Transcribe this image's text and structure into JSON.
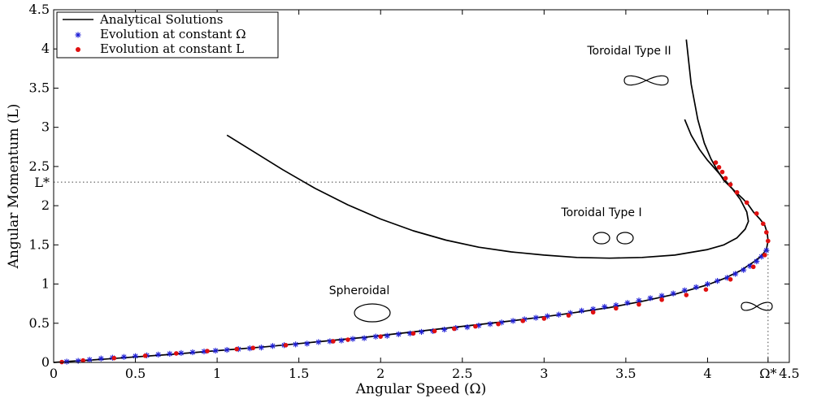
{
  "chart_data": {
    "type": "line",
    "xlabel": "Angular Speed (Ω)",
    "ylabel": "Angular Momentum (L)",
    "xlim": [
      0,
      4.5
    ],
    "ylim": [
      0,
      4.5
    ],
    "x_ticks": [
      "0",
      "0.5",
      "1",
      "1.5",
      "2",
      "2.5",
      "3",
      "3.5",
      "4",
      "Ω*",
      "4.5"
    ],
    "x_tick_values": [
      0,
      0.5,
      1,
      1.5,
      2,
      2.5,
      3,
      3.5,
      4,
      4.37,
      4.5
    ],
    "y_ticks": [
      "0",
      "0.5",
      "1",
      "1.5",
      "2",
      "2.5",
      "3",
      "3.5",
      "4",
      "4.5"
    ],
    "y_tick_values": [
      0,
      0.5,
      1,
      1.5,
      2,
      2.5,
      3,
      3.5,
      4,
      4.5
    ],
    "grid": false,
    "legend_position": "top-left",
    "legend": [
      {
        "label": "Analytical Solutions",
        "marker": "line",
        "color": "#000000"
      },
      {
        "label": "Evolution at constant Ω",
        "marker": "star",
        "color": "#1f1fd6"
      },
      {
        "label": "Evolution at constant L",
        "marker": "dot",
        "color": "#e01010"
      }
    ],
    "reference_lines": {
      "L_star": {
        "label": "L*",
        "value": 2.3
      },
      "Omega_star": {
        "label": "Ω*",
        "value": 4.37
      }
    },
    "annotations": {
      "spheroidal": {
        "text": "Spheroidal",
        "x": 1.9,
        "y": 0.88
      },
      "toroidal_one": {
        "text": "Toroidal Type I",
        "x": 3.4,
        "y": 1.85
      },
      "toroidal_two": {
        "text": "Toroidal Type II",
        "x": 3.45,
        "y": 3.98
      }
    },
    "series": [
      {
        "name": "Analytical Solutions",
        "kind": "line",
        "color": "#000000",
        "curves": [
          {
            "x": [
              0,
              0.1,
              0.3,
              0.5,
              0.7,
              1.0,
              1.3,
              1.6,
              1.9,
              2.2,
              2.5,
              2.8,
              3.1,
              3.4,
              3.6,
              3.8,
              4.0,
              4.1,
              4.2,
              4.28,
              4.33,
              4.36,
              4.37,
              4.365,
              4.35,
              4.32,
              4.28,
              4.25,
              4.22,
              4.18,
              4.14,
              4.1,
              4.06,
              4.02,
              3.98,
              3.94,
              3.9,
              3.87
            ],
            "y": [
              0,
              0.015,
              0.04,
              0.07,
              0.1,
              0.15,
              0.2,
              0.26,
              0.32,
              0.39,
              0.46,
              0.53,
              0.61,
              0.7,
              0.78,
              0.87,
              0.99,
              1.07,
              1.17,
              1.28,
              1.36,
              1.44,
              1.55,
              1.65,
              1.75,
              1.83,
              1.92,
              2.01,
              2.08,
              2.16,
              2.24,
              2.32,
              2.45,
              2.6,
              2.8,
              3.1,
              3.55,
              4.12
            ]
          },
          {
            "x": [
              1.06,
              1.2,
              1.4,
              1.6,
              1.8,
              2.0,
              2.2,
              2.4,
              2.6,
              2.8,
              3.0,
              3.2,
              3.4,
              3.6,
              3.8,
              4.0,
              4.1,
              4.18,
              4.23,
              4.25,
              4.24,
              4.2,
              4.15,
              4.1,
              4.05,
              4.0,
              3.95,
              3.9,
              3.86
            ],
            "y": [
              2.9,
              2.72,
              2.46,
              2.22,
              2.01,
              1.83,
              1.68,
              1.56,
              1.47,
              1.41,
              1.37,
              1.34,
              1.33,
              1.34,
              1.37,
              1.44,
              1.5,
              1.59,
              1.7,
              1.8,
              1.92,
              2.08,
              2.22,
              2.34,
              2.46,
              2.58,
              2.72,
              2.9,
              3.1
            ]
          }
        ]
      },
      {
        "name": "Evolution at constant Ω",
        "kind": "marker-star",
        "color": "#1f1fd6",
        "x": [
          0.08,
          0.15,
          0.22,
          0.29,
          0.36,
          0.43,
          0.5,
          0.57,
          0.64,
          0.71,
          0.78,
          0.85,
          0.92,
          0.99,
          1.06,
          1.13,
          1.2,
          1.27,
          1.34,
          1.41,
          1.48,
          1.55,
          1.62,
          1.69,
          1.76,
          1.83,
          1.9,
          1.97,
          2.04,
          2.11,
          2.18,
          2.25,
          2.32,
          2.39,
          2.46,
          2.53,
          2.6,
          2.67,
          2.74,
          2.81,
          2.88,
          2.95,
          3.02,
          3.09,
          3.16,
          3.23,
          3.3,
          3.37,
          3.44,
          3.51,
          3.58,
          3.65,
          3.72,
          3.79,
          3.86,
          3.93,
          4.0,
          4.06,
          4.12,
          4.17,
          4.22,
          4.26,
          4.3,
          4.33,
          4.36
        ],
        "y": [
          0.01,
          0.02,
          0.035,
          0.05,
          0.06,
          0.07,
          0.08,
          0.09,
          0.1,
          0.11,
          0.12,
          0.13,
          0.14,
          0.15,
          0.16,
          0.17,
          0.18,
          0.19,
          0.21,
          0.22,
          0.23,
          0.24,
          0.26,
          0.27,
          0.28,
          0.3,
          0.31,
          0.33,
          0.34,
          0.36,
          0.37,
          0.39,
          0.4,
          0.42,
          0.44,
          0.45,
          0.47,
          0.49,
          0.51,
          0.53,
          0.55,
          0.57,
          0.59,
          0.61,
          0.63,
          0.66,
          0.68,
          0.71,
          0.73,
          0.76,
          0.79,
          0.82,
          0.85,
          0.88,
          0.92,
          0.96,
          1.0,
          1.04,
          1.08,
          1.13,
          1.18,
          1.23,
          1.29,
          1.35,
          1.43
        ]
      },
      {
        "name": "Evolution at constant L",
        "kind": "marker-dot",
        "color": "#e01010",
        "x": [
          0.05,
          0.18,
          0.37,
          0.56,
          0.75,
          0.94,
          1.12,
          1.22,
          1.42,
          1.71,
          1.8,
          2.0,
          2.2,
          2.33,
          2.45,
          2.58,
          2.72,
          2.87,
          3.0,
          3.15,
          3.3,
          3.44,
          3.58,
          3.72,
          3.87,
          3.99,
          4.14,
          4.28,
          4.35,
          4.37,
          4.36,
          4.34,
          4.3,
          4.24,
          4.18,
          4.14,
          4.11,
          4.09,
          4.07,
          4.05
        ],
        "y": [
          0.005,
          0.025,
          0.055,
          0.085,
          0.115,
          0.145,
          0.17,
          0.185,
          0.22,
          0.27,
          0.29,
          0.33,
          0.37,
          0.4,
          0.43,
          0.46,
          0.49,
          0.53,
          0.56,
          0.6,
          0.64,
          0.69,
          0.74,
          0.8,
          0.86,
          0.93,
          1.06,
          1.22,
          1.37,
          1.55,
          1.66,
          1.77,
          1.9,
          2.04,
          2.17,
          2.27,
          2.35,
          2.43,
          2.49,
          2.55
        ]
      }
    ]
  }
}
